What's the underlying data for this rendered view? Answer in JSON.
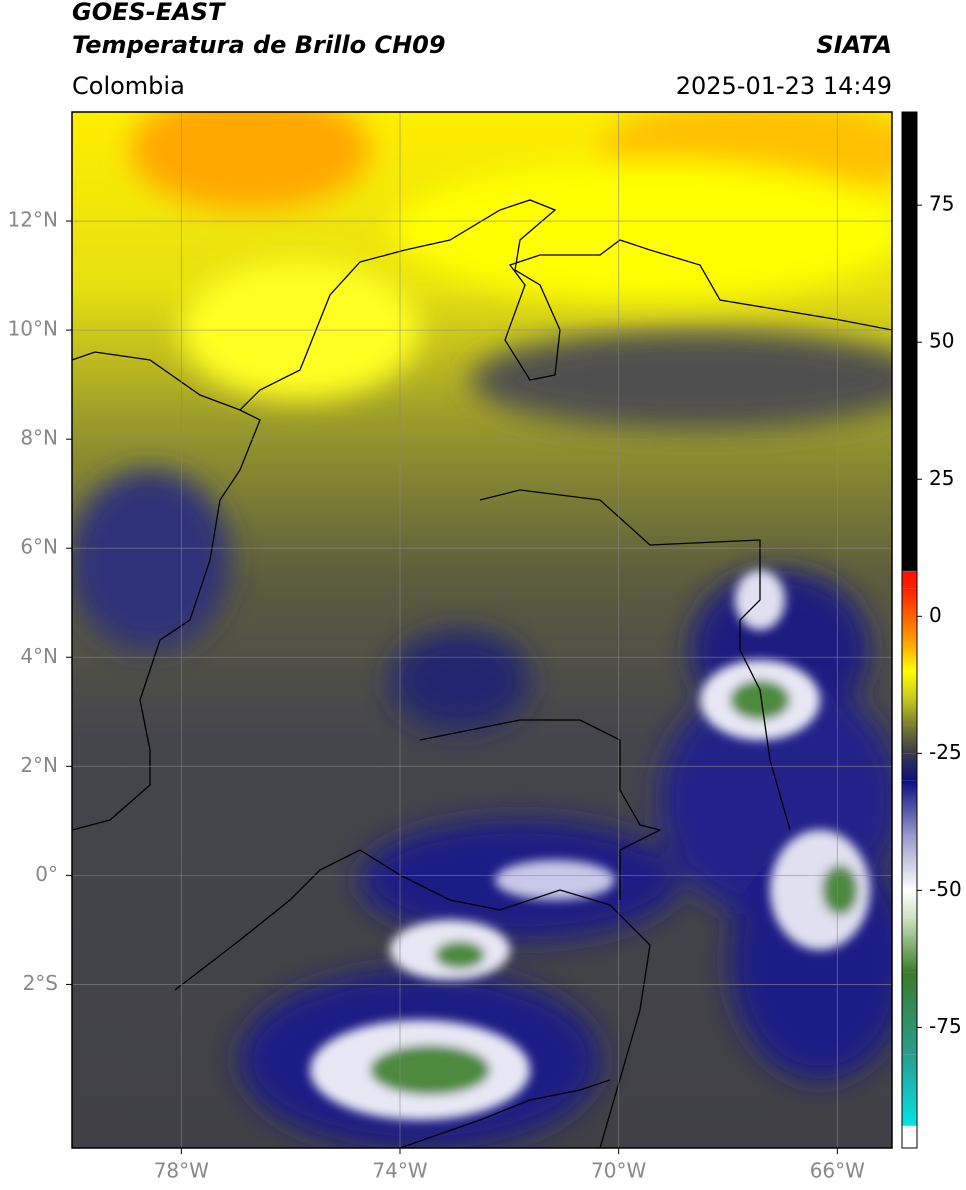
{
  "header": {
    "title": "GOES-EAST",
    "subtitle": "Temperatura de Brillo CH09",
    "source": "SIATA",
    "region": "Colombia",
    "timestamp": "2025-01-23 14:49"
  },
  "map": {
    "xlim": [
      -80,
      -65
    ],
    "ylim": [
      -5,
      14
    ],
    "xticks": [
      {
        "value": -78,
        "label": "78°W"
      },
      {
        "value": -74,
        "label": "74°W"
      },
      {
        "value": -70,
        "label": "70°W"
      },
      {
        "value": -66,
        "label": "66°W"
      }
    ],
    "yticks": [
      {
        "value": 12,
        "label": "12°N"
      },
      {
        "value": 10,
        "label": "10°N"
      },
      {
        "value": 8,
        "label": "8°N"
      },
      {
        "value": 6,
        "label": "6°N"
      },
      {
        "value": 4,
        "label": "4°N"
      },
      {
        "value": 2,
        "label": "2°N"
      },
      {
        "value": 0,
        "label": "0°"
      },
      {
        "value": -2,
        "label": "2°S"
      }
    ],
    "grid": true
  },
  "colorbar": {
    "lim": [
      -97,
      92
    ],
    "ticks": [
      75,
      50,
      25,
      0,
      -25,
      -50,
      -75
    ],
    "colormap": [
      {
        "value": -97,
        "color": "#ffffff"
      },
      {
        "value": -93,
        "color": "#ffffff"
      },
      {
        "value": -92.9,
        "color": "#00e5e5"
      },
      {
        "value": -80,
        "color": "#2a9d8f"
      },
      {
        "value": -65,
        "color": "#3a7d2a"
      },
      {
        "value": -55,
        "color": "#cfe3c0"
      },
      {
        "value": -50,
        "color": "#ffffff"
      },
      {
        "value": -40,
        "color": "#9999cc"
      },
      {
        "value": -30,
        "color": "#0a1080"
      },
      {
        "value": -25,
        "color": "#3a3a4a"
      },
      {
        "value": -20,
        "color": "#7a7a30"
      },
      {
        "value": -15,
        "color": "#c8c820"
      },
      {
        "value": -10,
        "color": "#ffff00"
      },
      {
        "value": -5,
        "color": "#ffa500"
      },
      {
        "value": 5,
        "color": "#ff2000"
      },
      {
        "value": 8.2,
        "color": "#ff1000"
      },
      {
        "value": 8.3,
        "color": "#000000"
      },
      {
        "value": 92,
        "color": "#000000"
      }
    ]
  }
}
